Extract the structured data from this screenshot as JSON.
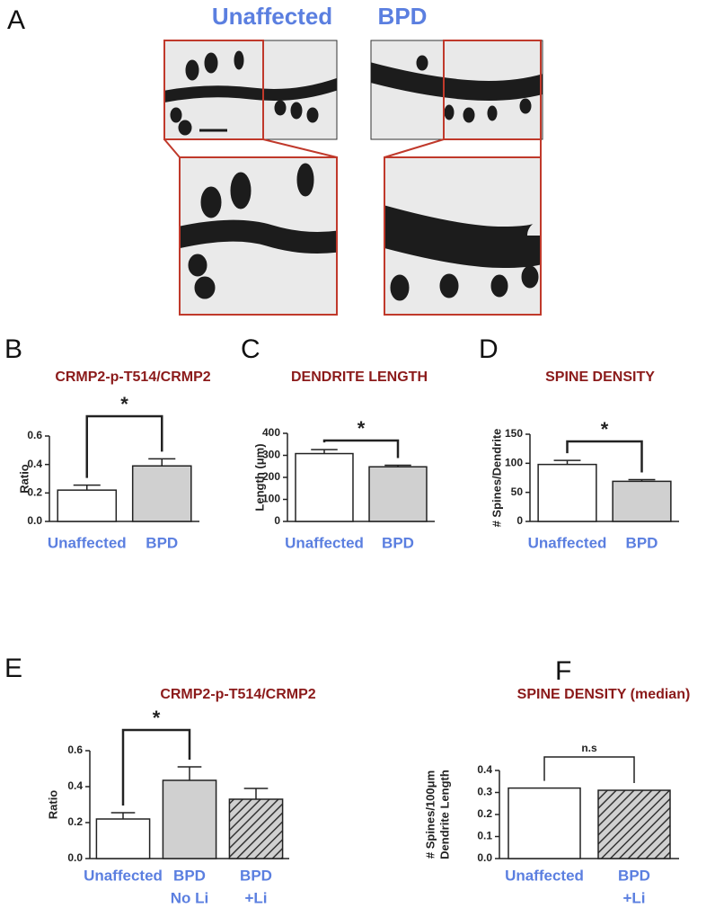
{
  "panel_a": {
    "label": "A",
    "titles": [
      "Unaffected",
      "BPD"
    ]
  },
  "chart_data": [
    {
      "type": "bar",
      "panel": "B",
      "title": "CRMP2-p-T514/CRMP2",
      "ylabel": [
        "Ratio"
      ],
      "categories": [
        [
          "Unaffected"
        ],
        [
          "BPD"
        ]
      ],
      "values": [
        0.22,
        0.39
      ],
      "errors": [
        0.035,
        0.05
      ],
      "colors": [
        "#ffffff",
        "#d0d0d0"
      ],
      "hatched": [
        false,
        false
      ],
      "ylim": [
        0,
        0.6
      ],
      "yticks": [
        {
          "value": 0,
          "label": "0.0"
        },
        0.2,
        0.4,
        0.6
      ],
      "annotation": "*"
    },
    {
      "type": "bar",
      "panel": "C",
      "title": "DENDRITE LENGTH",
      "ylabel": [
        "Length (μm)"
      ],
      "categories": [
        [
          "Unaffected"
        ],
        [
          "BPD"
        ]
      ],
      "values": [
        308,
        248
      ],
      "errors": [
        18,
        7
      ],
      "colors": [
        "#ffffff",
        "#d0d0d0"
      ],
      "hatched": [
        false,
        false
      ],
      "ylim": [
        0,
        400
      ],
      "yticks": [
        0,
        100,
        200,
        300,
        400
      ],
      "annotation": "*"
    },
    {
      "type": "bar",
      "panel": "D",
      "title": "SPINE DENSITY",
      "ylabel": [
        "# Spines/Dendrite"
      ],
      "categories": [
        [
          "Unaffected"
        ],
        [
          "BPD"
        ]
      ],
      "values": [
        98,
        69
      ],
      "errors": [
        7,
        3
      ],
      "colors": [
        "#ffffff",
        "#d0d0d0"
      ],
      "hatched": [
        false,
        false
      ],
      "ylim": [
        0,
        150
      ],
      "yticks": [
        0,
        50,
        100,
        150
      ],
      "annotation": "*"
    },
    {
      "type": "bar",
      "panel": "E",
      "title": "CRMP2-p-T514/CRMP2",
      "ylabel": [
        "Ratio"
      ],
      "categories": [
        [
          "Unaffected"
        ],
        [
          "BPD",
          "No Li"
        ],
        [
          "BPD",
          "+Li"
        ]
      ],
      "values": [
        0.22,
        0.435,
        0.33
      ],
      "errors": [
        0.035,
        0.075,
        0.06
      ],
      "colors": [
        "#ffffff",
        "#d0d0d0",
        "#d0d0d0"
      ],
      "hatched": [
        false,
        false,
        true
      ],
      "ylim": [
        0,
        0.6
      ],
      "yticks": [
        {
          "value": 0,
          "label": "0.0"
        },
        0.2,
        0.4,
        0.6
      ],
      "annotation": "*"
    },
    {
      "type": "bar",
      "panel": "F",
      "title": "SPINE DENSITY (median)",
      "ylabel": [
        "# Spines/100μm",
        "Dendrite Length"
      ],
      "categories": [
        [
          "Unaffected"
        ],
        [
          "BPD",
          "+Li"
        ]
      ],
      "values": [
        0.32,
        0.31
      ],
      "colors": [
        "#ffffff",
        "#d0d0d0"
      ],
      "hatched": [
        false,
        true
      ],
      "ylim": [
        0,
        0.4
      ],
      "yticks": [
        {
          "value": 0,
          "label": "0.0"
        },
        0.1,
        0.2,
        0.3,
        0.4
      ],
      "annotation": "n.s"
    }
  ]
}
